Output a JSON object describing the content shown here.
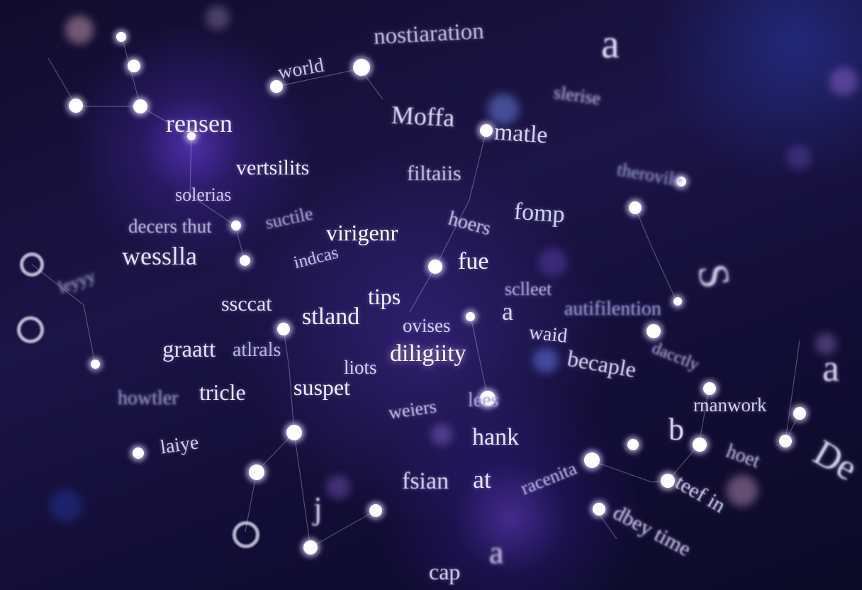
{
  "words": [
    {
      "id": "nostiaration",
      "text": "nostiaration"
    },
    {
      "id": "world",
      "text": "world"
    },
    {
      "id": "a-top",
      "text": "a"
    },
    {
      "id": "slerise",
      "text": "slerise"
    },
    {
      "id": "rensen",
      "text": "rensen"
    },
    {
      "id": "moffa",
      "text": "Moffa"
    },
    {
      "id": "matle",
      "text": "matle"
    },
    {
      "id": "vertsilits",
      "text": "vertsilits"
    },
    {
      "id": "filtaiis",
      "text": "filtaiis"
    },
    {
      "id": "therovile",
      "text": "therovile"
    },
    {
      "id": "solerias",
      "text": "solerias"
    },
    {
      "id": "fomp",
      "text": "fomp"
    },
    {
      "id": "decers-thut",
      "text": "decers thut"
    },
    {
      "id": "suctile",
      "text": "suctile"
    },
    {
      "id": "virigenr",
      "text": "virigenr"
    },
    {
      "id": "hoers",
      "text": "hoers"
    },
    {
      "id": "wesslla",
      "text": "wesslla"
    },
    {
      "id": "indcas",
      "text": "indcas"
    },
    {
      "id": "fue",
      "text": "fue"
    },
    {
      "id": "sclleet",
      "text": "sclleet"
    },
    {
      "id": "s-right",
      "text": "S"
    },
    {
      "id": "leyyy",
      "text": "leyyy"
    },
    {
      "id": "ssccat",
      "text": "ssccat"
    },
    {
      "id": "tips",
      "text": "tips"
    },
    {
      "id": "stland",
      "text": "stland"
    },
    {
      "id": "ovises",
      "text": "ovises"
    },
    {
      "id": "a-mid",
      "text": "a"
    },
    {
      "id": "autifilention",
      "text": "autifilention"
    },
    {
      "id": "waid",
      "text": "waid"
    },
    {
      "id": "graatt",
      "text": "graatt"
    },
    {
      "id": "atlrals",
      "text": "atlrals"
    },
    {
      "id": "diligiity",
      "text": "diligiity"
    },
    {
      "id": "dacctly",
      "text": "dacctly"
    },
    {
      "id": "becaple",
      "text": "becaple"
    },
    {
      "id": "a-right",
      "text": "a"
    },
    {
      "id": "liots",
      "text": "liots"
    },
    {
      "id": "howtler",
      "text": "howtler"
    },
    {
      "id": "tricle",
      "text": "tricle"
    },
    {
      "id": "suspet",
      "text": "suspet"
    },
    {
      "id": "weiers",
      "text": "weiers"
    },
    {
      "id": "lees",
      "text": "lees"
    },
    {
      "id": "rnanwork",
      "text": "rnanwork"
    },
    {
      "id": "b",
      "text": "b"
    },
    {
      "id": "hank",
      "text": "hank"
    },
    {
      "id": "laiye",
      "text": "laiye"
    },
    {
      "id": "hoet",
      "text": "hoet"
    },
    {
      "id": "de",
      "text": "De"
    },
    {
      "id": "fsian",
      "text": "fsian"
    },
    {
      "id": "at",
      "text": "at"
    },
    {
      "id": "racenita",
      "text": "racenita"
    },
    {
      "id": "teef-in",
      "text": "teef in"
    },
    {
      "id": "j",
      "text": "j"
    },
    {
      "id": "dbey-time",
      "text": "dbey time"
    },
    {
      "id": "cap",
      "text": "cap"
    },
    {
      "id": "a-bottom",
      "text": "a"
    }
  ]
}
